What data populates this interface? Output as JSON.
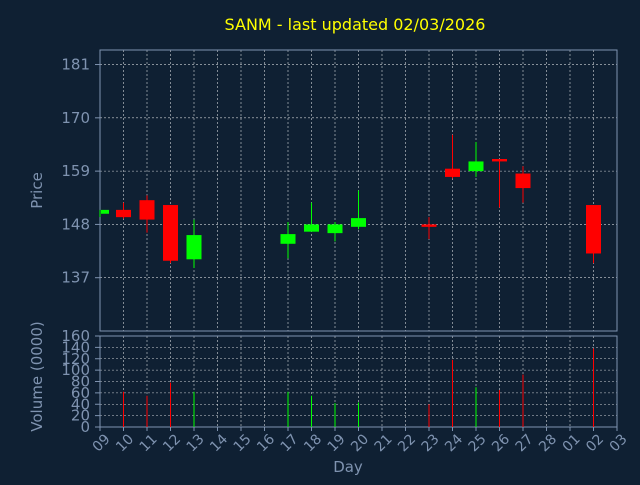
{
  "colors": {
    "background": "#0f2033",
    "title": "#ffff00",
    "axis_text": "#7f93b0",
    "grid": "#ffffff",
    "up": "#00ff00",
    "down": "#ff0000",
    "frame": "#7f93b0"
  },
  "chart_data": {
    "type": "candlestick",
    "title": "SANM - last updated 02/03/2026",
    "xlabel": "Day",
    "price_panel": {
      "ylabel": "Price",
      "ylim": [
        126,
        184
      ],
      "yticks": [
        137,
        148,
        159,
        170,
        181
      ],
      "grid": true
    },
    "volume_panel": {
      "ylabel": "Volume (0000)",
      "ylim": [
        0,
        160
      ],
      "yticks": [
        0,
        20,
        40,
        60,
        80,
        100,
        120,
        140,
        160
      ],
      "grid": true
    },
    "x_tick_labels": [
      "09",
      "10",
      "11",
      "12",
      "13",
      "14",
      "15",
      "16",
      "17",
      "18",
      "19",
      "20",
      "21",
      "22",
      "23",
      "24",
      "25",
      "26",
      "27",
      "28",
      "01",
      "02",
      "03"
    ],
    "candles": [
      {
        "day": "09",
        "open": 150.2,
        "high": 151.0,
        "low": 149.5,
        "close": 151.0,
        "volume": 0
      },
      {
        "day": "10",
        "open": 151.0,
        "high": 152.5,
        "low": 149.2,
        "close": 149.5,
        "volume": 62
      },
      {
        "day": "11",
        "open": 153.0,
        "high": 154.0,
        "low": 146.3,
        "close": 149.0,
        "volume": 55
      },
      {
        "day": "12",
        "open": 152.0,
        "high": 152.0,
        "low": 140.0,
        "close": 140.5,
        "volume": 78
      },
      {
        "day": "13",
        "open": 140.8,
        "high": 149.0,
        "low": 139.0,
        "close": 145.8,
        "volume": 62
      },
      {
        "day": "17",
        "open": 144.0,
        "high": 148.5,
        "low": 141.0,
        "close": 146.0,
        "volume": 62
      },
      {
        "day": "18",
        "open": 146.5,
        "high": 152.5,
        "low": 146.5,
        "close": 148.0,
        "volume": 55
      },
      {
        "day": "19",
        "open": 146.2,
        "high": 148.5,
        "low": 144.5,
        "close": 148.0,
        "volume": 42
      },
      {
        "day": "20",
        "open": 147.5,
        "high": 155.0,
        "low": 147.0,
        "close": 149.3,
        "volume": 43
      },
      {
        "day": "23",
        "open": 148.0,
        "high": 149.5,
        "low": 145.0,
        "close": 147.5,
        "volume": 40
      },
      {
        "day": "24",
        "open": 159.5,
        "high": 166.5,
        "low": 157.5,
        "close": 157.8,
        "volume": 118
      },
      {
        "day": "25",
        "open": 159.0,
        "high": 165.0,
        "low": 157.8,
        "close": 161.0,
        "volume": 70
      },
      {
        "day": "26",
        "open": 161.5,
        "high": 161.5,
        "low": 151.5,
        "close": 161.0,
        "volume": 65
      },
      {
        "day": "27",
        "open": 158.5,
        "high": 160.0,
        "low": 152.5,
        "close": 155.5,
        "volume": 92
      },
      {
        "day": "02",
        "open": 152.0,
        "high": 152.0,
        "low": 140.0,
        "close": 142.0,
        "volume": 138
      }
    ]
  }
}
